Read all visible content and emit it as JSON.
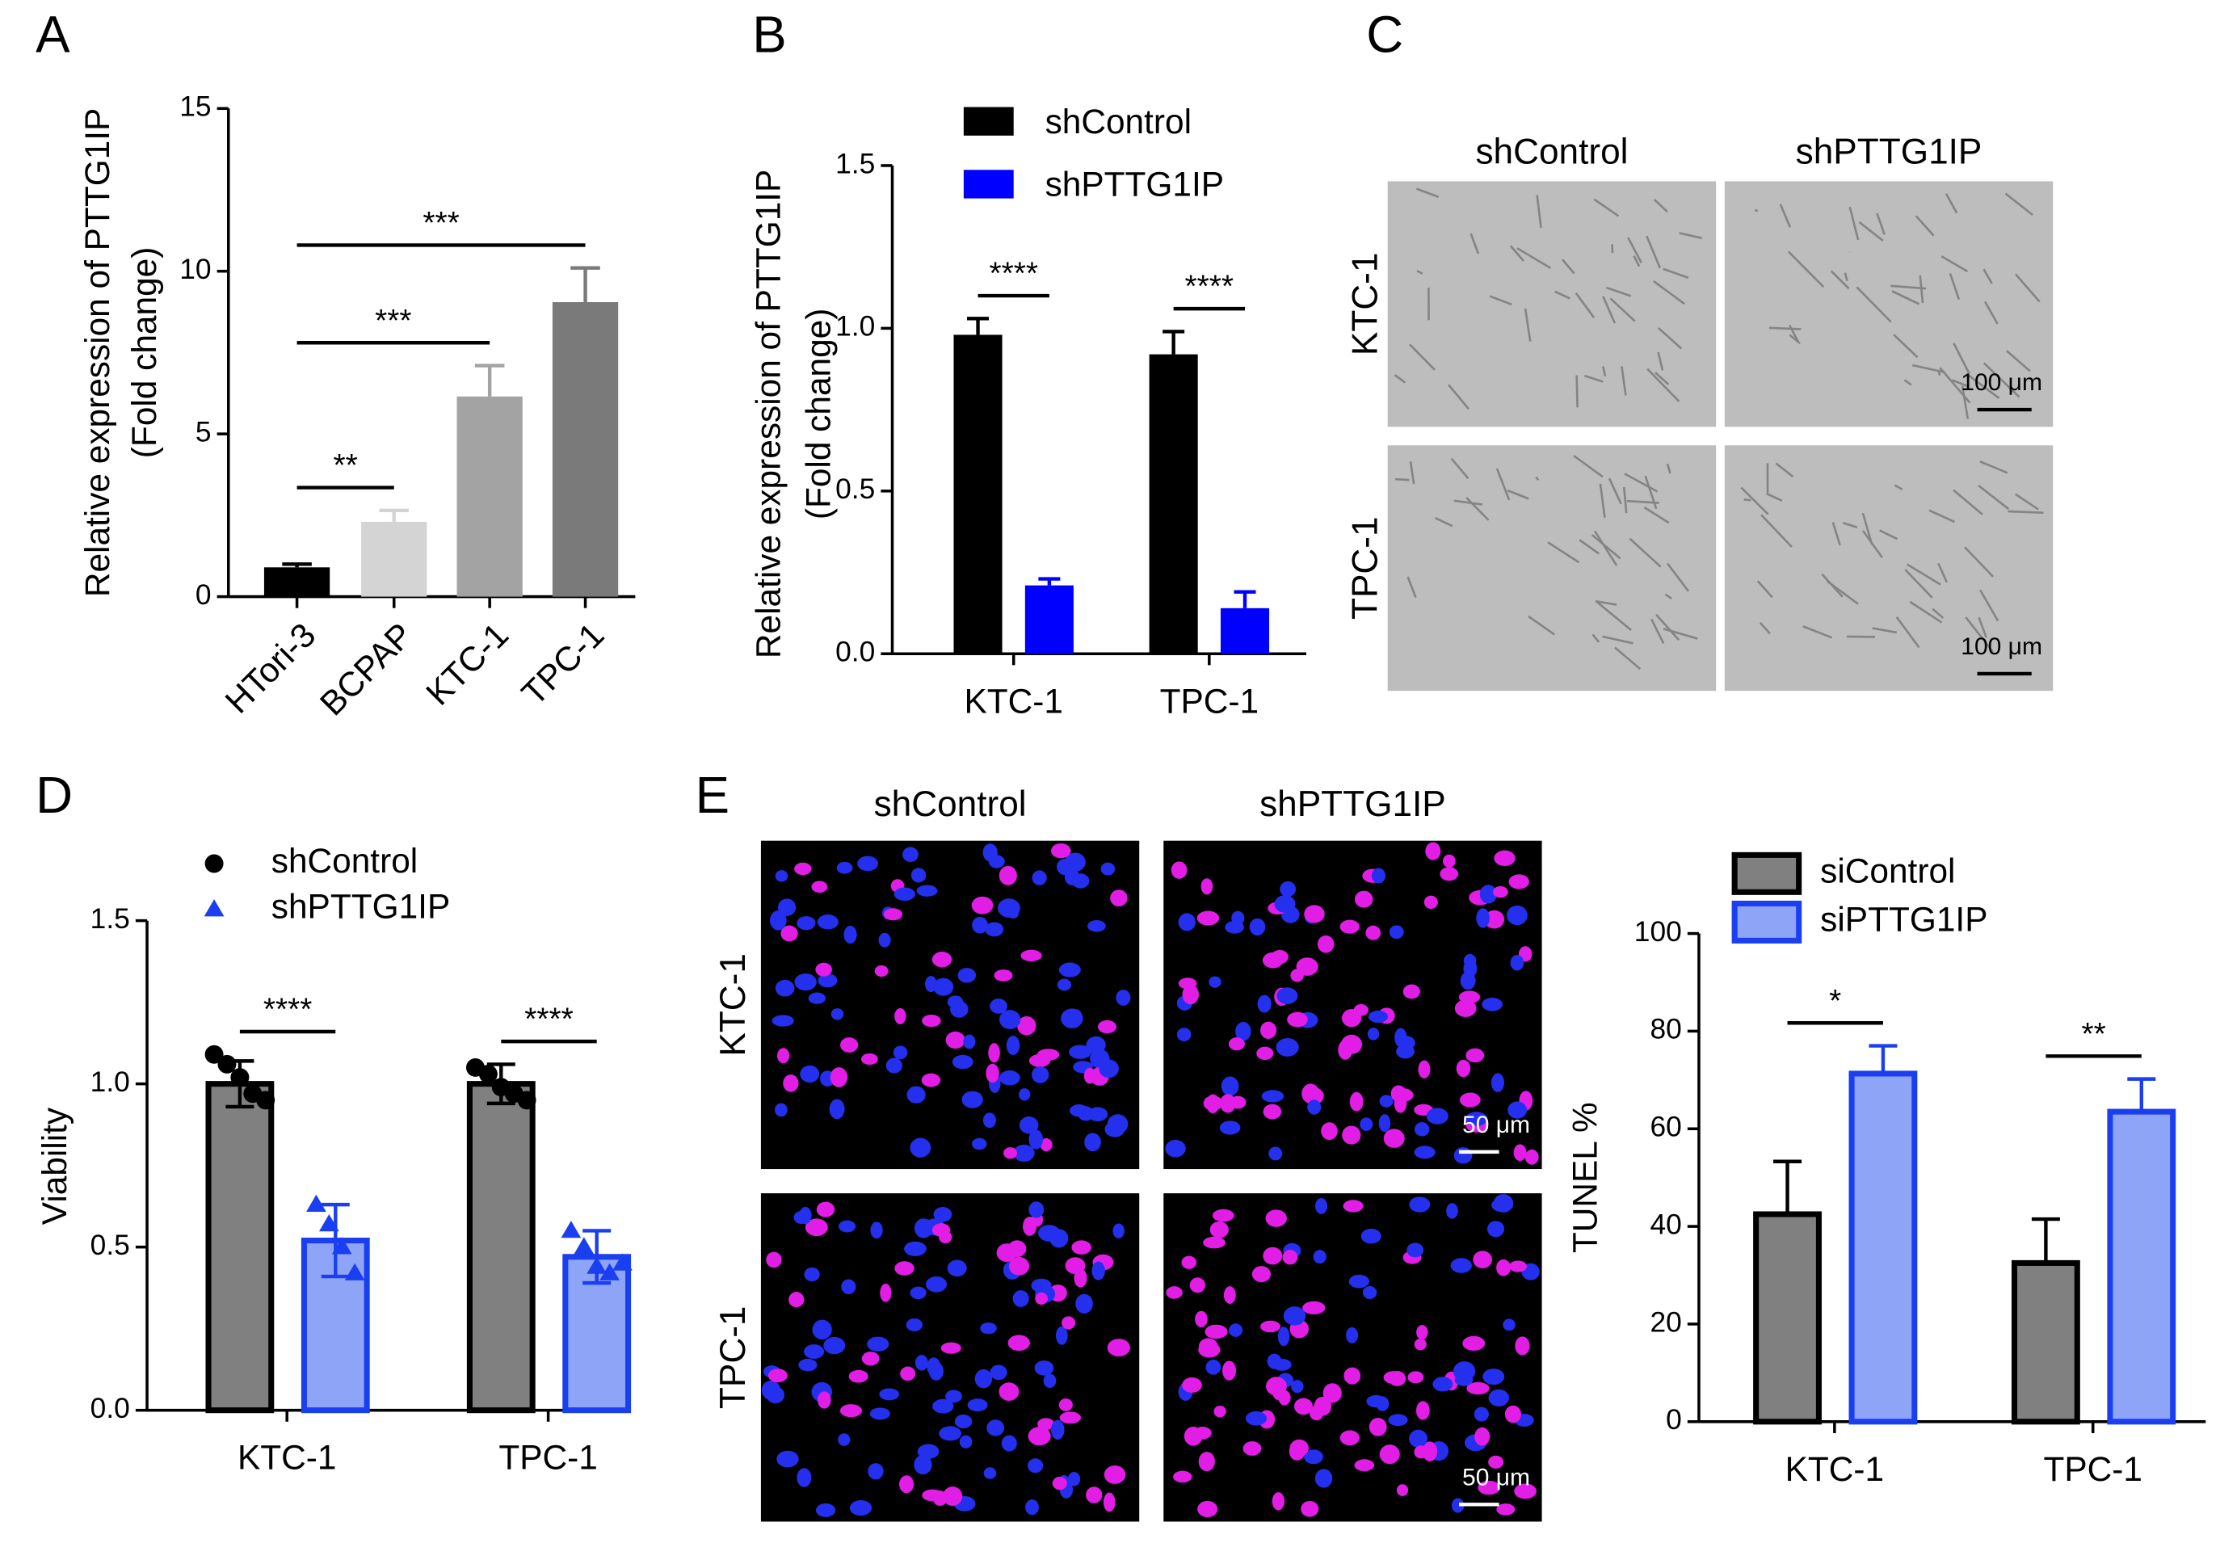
{
  "chart_data": [
    {
      "panel_label": "A",
      "type": "bar",
      "ylabel": [
        "Relative expression of PTTG1IP",
        "(Fold change)"
      ],
      "categories": [
        "HTori-3",
        "BCPAP",
        "KTC-1",
        "TPC-1"
      ],
      "values": [
        0.9,
        2.3,
        6.15,
        9.05
      ],
      "errors": [
        0.1,
        0.35,
        0.95,
        1.05
      ],
      "colors": [
        "#000000",
        "#d4d4d4",
        "#a3a3a3",
        "#7a7a7a"
      ],
      "error_direction": "up",
      "ylim": [
        0,
        15
      ],
      "yticks": [
        0,
        5,
        10,
        15
      ],
      "significance": [
        {
          "from": "HTori-3",
          "to": "BCPAP",
          "label": "**"
        },
        {
          "from": "HTori-3",
          "to": "KTC-1",
          "label": "***"
        },
        {
          "from": "HTori-3",
          "to": "TPC-1",
          "label": "***"
        }
      ]
    },
    {
      "panel_label": "B",
      "type": "bar",
      "ylabel": [
        "Relative expression of PTTG1IP",
        "(Fold change)"
      ],
      "categories": [
        "KTC-1",
        "TPC-1"
      ],
      "series": [
        {
          "name": "shControl",
          "color": "#000000",
          "values": [
            0.98,
            0.92
          ],
          "errors": [
            0.05,
            0.07
          ]
        },
        {
          "name": "shPTTG1IP",
          "color": "#0000ff",
          "values": [
            0.21,
            0.14
          ],
          "errors": [
            0.02,
            0.05
          ]
        }
      ],
      "error_direction": "up",
      "ylim": [
        0,
        1.5
      ],
      "yticks": [
        {
          "value": 0,
          "label": "0.0"
        },
        0.5,
        {
          "value": 1,
          "label": "1.0"
        },
        1.5
      ],
      "significance": [
        "****",
        "****"
      ],
      "legend": "upper left"
    },
    {
      "panel_label": "D",
      "type": "bar",
      "ylabel": [
        "Viability"
      ],
      "categories": [
        "KTC-1",
        "TPC-1"
      ],
      "series": [
        {
          "name": "shControl",
          "color": "#808080",
          "edgecolor": "#000000",
          "marker": "circle",
          "values": [
            1.0,
            1.0
          ],
          "errors": [
            0.07,
            0.06
          ],
          "points": [
            [
              1.09,
              1.06,
              1.02,
              0.97,
              0.95
            ],
            [
              1.05,
              1.03,
              0.99,
              0.97,
              0.95
            ]
          ]
        },
        {
          "name": "shPTTG1IP",
          "color": "#8ea4f7",
          "edgecolor": "#1a3ff0",
          "marker": "triangle",
          "values": [
            0.52,
            0.47
          ],
          "errors": [
            0.11,
            0.08
          ],
          "points": [
            [
              0.63,
              0.57,
              0.5,
              0.42
            ],
            [
              0.55,
              0.5,
              0.44,
              0.42,
              0.45
            ]
          ]
        }
      ],
      "error_direction": "both",
      "ylim": [
        0,
        1.5
      ],
      "yticks": [
        {
          "value": 0,
          "label": "0.0"
        },
        0.5,
        {
          "value": 1,
          "label": "1.0"
        },
        1.5
      ],
      "significance": [
        "****",
        "****"
      ],
      "legend": "upper left"
    },
    {
      "type": "bar",
      "ylabel": [
        "TUNEL %"
      ],
      "categories": [
        "KTC-1",
        "TPC-1"
      ],
      "series": [
        {
          "name": "siControl",
          "color": "#808080",
          "edgecolor": "#000000",
          "values": [
            42.5,
            32.5
          ],
          "errors": [
            10.8,
            9
          ]
        },
        {
          "name": "siPTTG1IP",
          "color": "#8ea4f7",
          "edgecolor": "#1a3ff0",
          "values": [
            71.3,
            63.5
          ],
          "errors": [
            5.7,
            6.7
          ]
        }
      ],
      "error_direction": "up",
      "ylim": [
        0,
        100
      ],
      "yticks": [
        0,
        20,
        40,
        60,
        80,
        100
      ],
      "significance": [
        "*",
        "**"
      ],
      "legend": "upper left"
    }
  ],
  "micrographs": [
    {
      "panel_label": "C",
      "columns": [
        "shControl",
        "shPTTG1IP"
      ],
      "rows": [
        "KTC-1",
        "TPC-1"
      ],
      "scale_bar": "100 μm"
    },
    {
      "panel_label": "E",
      "columns": [
        "shControl",
        "shPTTG1IP"
      ],
      "rows": [
        "KTC-1",
        "TPC-1"
      ],
      "scale_bar": "50 μm"
    }
  ]
}
